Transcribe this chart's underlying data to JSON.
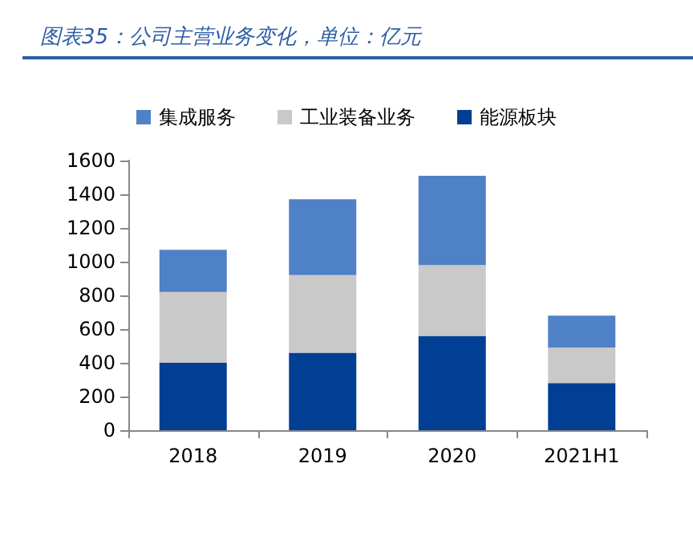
{
  "chart_data": {
    "type": "bar",
    "title": "图表35：公司主营业务变化，单位：亿元",
    "stacked": true,
    "categories": [
      "2018",
      "2019",
      "2020",
      "2021H1"
    ],
    "series": [
      {
        "name": "能源板块",
        "color": "#003f94",
        "values": [
          400,
          460,
          560,
          280
        ]
      },
      {
        "name": "工业装备业务",
        "color": "#c9c9c9",
        "values": [
          420,
          460,
          420,
          210
        ]
      },
      {
        "name": "集成服务",
        "color": "#4f81c7",
        "values": [
          250,
          450,
          530,
          190
        ]
      }
    ],
    "ylim": [
      0,
      1600
    ],
    "yticks": [
      0,
      200,
      400,
      600,
      800,
      1000,
      1200,
      1400,
      1600
    ],
    "grid": false,
    "legend": "top"
  }
}
